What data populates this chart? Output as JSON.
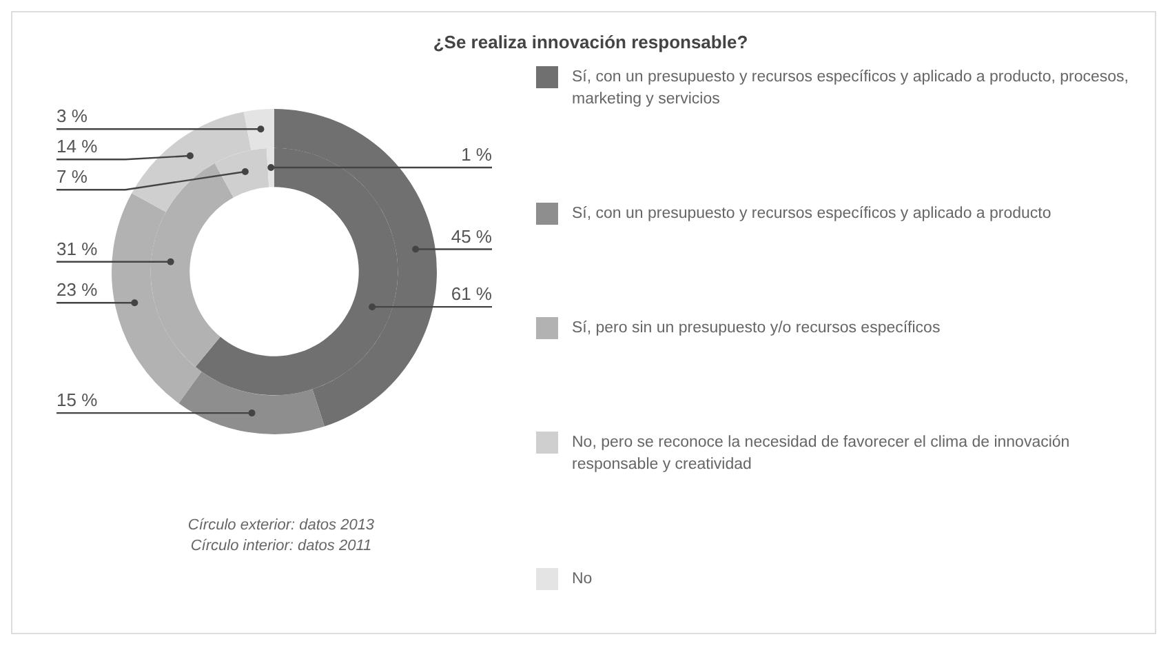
{
  "chart_data": {
    "type": "donut",
    "title": "¿Se realiza innovación responsable?",
    "categories": [
      "Sí, con un presupuesto y recursos específicos y aplicado a producto, procesos, marketing y servicios",
      "Sí, con un presupuesto y recursos específicos y aplicado a producto",
      "Sí, pero sin un presupuesto y/o recursos específicos",
      "No, pero se reconoce la necesidad de favorecer el clima de innovación responsable y creatividad",
      "No"
    ],
    "colors": [
      "#707070",
      "#8e8e8e",
      "#b2b2b2",
      "#cfcfcf",
      "#e4e4e4"
    ],
    "series": [
      {
        "values": [
          45,
          15,
          23,
          14,
          3
        ],
        "value_labels": [
          "45 %",
          "15 %",
          "23 %",
          "14 %",
          "3 %"
        ]
      },
      {
        "values": [
          61,
          0,
          31,
          7,
          1
        ],
        "value_labels": [
          "61 %",
          null,
          "31 %",
          "7 %",
          "1 %"
        ]
      }
    ],
    "legend": "right",
    "annotations": [
      "Círculo exterior: datos 2013",
      "Círculo interior: datos 2011"
    ]
  }
}
